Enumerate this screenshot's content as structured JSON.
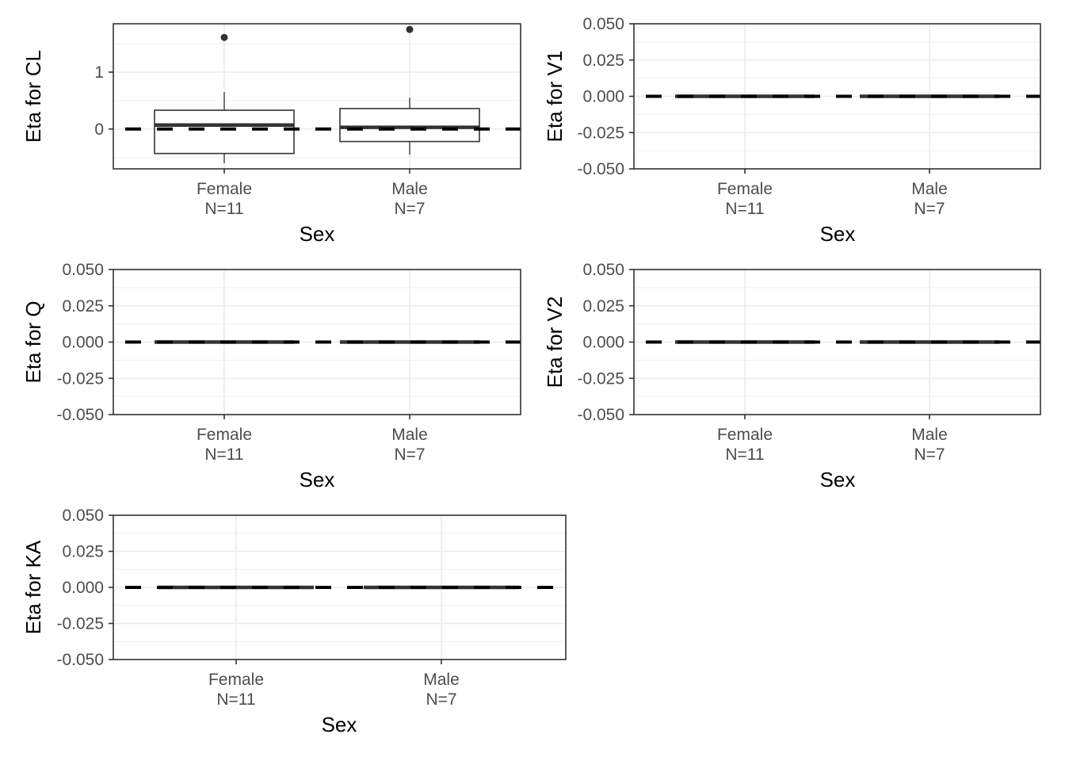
{
  "chart_data": [
    {
      "type": "box",
      "ylabel": "Eta for CL",
      "xlabel": "Sex",
      "categories": [
        "Female",
        "Male"
      ],
      "category_counts": [
        "N=11",
        "N=7"
      ],
      "ylim": [
        -0.7,
        1.85
      ],
      "yticks": [
        0,
        1
      ],
      "ytick_labels": [
        "0",
        "1"
      ],
      "reference_line": 0,
      "boxes": [
        {
          "whisker_low": -0.6,
          "q1": -0.43,
          "median": 0.07,
          "q3": 0.33,
          "whisker_high": 0.65,
          "outliers": [
            1.61
          ]
        },
        {
          "whisker_low": -0.45,
          "q1": -0.22,
          "median": 0.03,
          "q3": 0.36,
          "whisker_high": 0.55,
          "outliers": [
            1.75
          ]
        }
      ]
    },
    {
      "type": "box",
      "ylabel": "Eta for V1",
      "xlabel": "Sex",
      "categories": [
        "Female",
        "Male"
      ],
      "category_counts": [
        "N=11",
        "N=7"
      ],
      "ylim": [
        -0.05,
        0.05
      ],
      "yticks": [
        -0.05,
        -0.025,
        0,
        0.025,
        0.05
      ],
      "ytick_labels": [
        "-0.050",
        "-0.025",
        "0.000",
        "0.025",
        "0.050"
      ],
      "reference_line": 0,
      "boxes": [
        {
          "whisker_low": 0,
          "q1": 0,
          "median": 0,
          "q3": 0,
          "whisker_high": 0,
          "outliers": []
        },
        {
          "whisker_low": 0,
          "q1": 0,
          "median": 0,
          "q3": 0,
          "whisker_high": 0,
          "outliers": []
        }
      ]
    },
    {
      "type": "box",
      "ylabel": "Eta for Q",
      "xlabel": "Sex",
      "categories": [
        "Female",
        "Male"
      ],
      "category_counts": [
        "N=11",
        "N=7"
      ],
      "ylim": [
        -0.05,
        0.05
      ],
      "yticks": [
        -0.05,
        -0.025,
        0,
        0.025,
        0.05
      ],
      "ytick_labels": [
        "-0.050",
        "-0.025",
        "0.000",
        "0.025",
        "0.050"
      ],
      "reference_line": 0,
      "boxes": [
        {
          "whisker_low": 0,
          "q1": 0,
          "median": 0,
          "q3": 0,
          "whisker_high": 0,
          "outliers": []
        },
        {
          "whisker_low": 0,
          "q1": 0,
          "median": 0,
          "q3": 0,
          "whisker_high": 0,
          "outliers": []
        }
      ]
    },
    {
      "type": "box",
      "ylabel": "Eta for V2",
      "xlabel": "Sex",
      "categories": [
        "Female",
        "Male"
      ],
      "category_counts": [
        "N=11",
        "N=7"
      ],
      "ylim": [
        -0.05,
        0.05
      ],
      "yticks": [
        -0.05,
        -0.025,
        0,
        0.025,
        0.05
      ],
      "ytick_labels": [
        "-0.050",
        "-0.025",
        "0.000",
        "0.025",
        "0.050"
      ],
      "reference_line": 0,
      "boxes": [
        {
          "whisker_low": 0,
          "q1": 0,
          "median": 0,
          "q3": 0,
          "whisker_high": 0,
          "outliers": []
        },
        {
          "whisker_low": 0,
          "q1": 0,
          "median": 0,
          "q3": 0,
          "whisker_high": 0,
          "outliers": []
        }
      ]
    },
    {
      "type": "box",
      "ylabel": "Eta for KA",
      "xlabel": "Sex",
      "categories": [
        "Female",
        "Male"
      ],
      "category_counts": [
        "N=11",
        "N=7"
      ],
      "ylim": [
        -0.05,
        0.05
      ],
      "yticks": [
        -0.05,
        -0.025,
        0,
        0.025,
        0.05
      ],
      "ytick_labels": [
        "-0.050",
        "-0.025",
        "0.000",
        "0.025",
        "0.050"
      ],
      "reference_line": 0,
      "boxes": [
        {
          "whisker_low": 0,
          "q1": 0,
          "median": 0,
          "q3": 0,
          "whisker_high": 0,
          "outliers": []
        },
        {
          "whisker_low": 0,
          "q1": 0,
          "median": 0,
          "q3": 0,
          "whisker_high": 0,
          "outliers": []
        }
      ]
    }
  ]
}
